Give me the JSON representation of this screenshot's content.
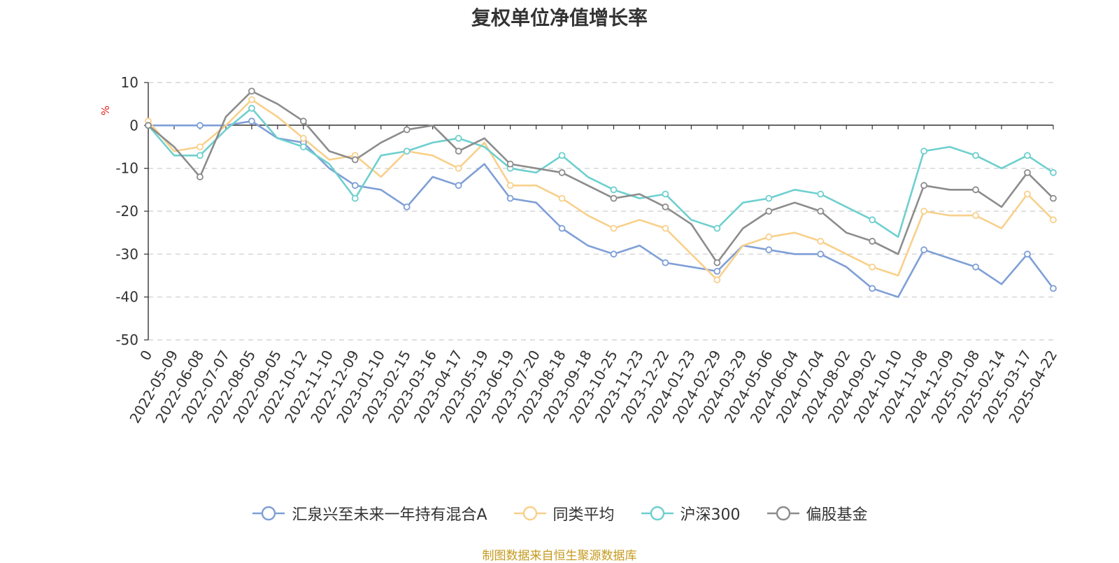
{
  "chart_data": {
    "type": "line",
    "title": "复权单位净值增长率",
    "ylabel": "%",
    "ylim": [
      -50,
      10
    ],
    "yticks": [
      10,
      0,
      -10,
      -20,
      -30,
      -40,
      -50
    ],
    "ytick_labels": [
      "10",
      "0",
      "-10",
      "-20",
      "-30",
      "-40",
      "-50"
    ],
    "grid": true,
    "legend_position": "bottom",
    "x_categories": [
      "0",
      "2022-05-09",
      "2022-06-08",
      "2022-07-07",
      "2022-08-05",
      "2022-09-05",
      "2022-10-12",
      "2022-11-10",
      "2022-12-09",
      "2023-01-10",
      "2023-02-15",
      "2023-03-16",
      "2023-04-17",
      "2023-05-19",
      "2023-06-19",
      "2023-07-20",
      "2023-08-18",
      "2023-09-18",
      "2023-10-25",
      "2023-11-23",
      "2023-12-22",
      "2024-01-23",
      "2024-02-29",
      "2024-03-29",
      "2024-05-06",
      "2024-06-04",
      "2024-07-04",
      "2024-08-02",
      "2024-09-02",
      "2024-10-10",
      "2024-11-08",
      "2024-12-09",
      "2025-01-08",
      "2025-02-14",
      "2025-03-17",
      "2025-04-22"
    ],
    "series": [
      {
        "name": "汇泉兴至未来一年持有混合A",
        "color": "#7f9fd6",
        "values": [
          0,
          0,
          0,
          0,
          1,
          -3,
          -4,
          -10,
          -14,
          -15,
          -19,
          -12,
          -14,
          -9,
          -17,
          -18,
          -24,
          -28,
          -30,
          -28,
          -32,
          -33,
          -34,
          -28,
          -29,
          -30,
          -30,
          -33,
          -38,
          -40,
          -29,
          -31,
          -33,
          -37,
          -30,
          -38
        ]
      },
      {
        "name": "同类平均",
        "color": "#f8d08b",
        "values": [
          1,
          -6,
          -5,
          0,
          6,
          2,
          -3,
          -8,
          -7,
          -12,
          -6,
          -7,
          -10,
          -4,
          -14,
          -14,
          -17,
          -21,
          -24,
          -22,
          -24,
          -30,
          -36,
          -28,
          -26,
          -25,
          -27,
          -30,
          -33,
          -35,
          -20,
          -21,
          -21,
          -24,
          -16,
          -22
        ]
      },
      {
        "name": "沪深300",
        "color": "#6fcfcf",
        "values": [
          0,
          -7,
          -7,
          -1,
          4,
          -3,
          -5,
          -9,
          -17,
          -7,
          -6,
          -4,
          -3,
          -5,
          -10,
          -11,
          -7,
          -12,
          -15,
          -17,
          -16,
          -22,
          -24,
          -18,
          -17,
          -15,
          -16,
          -19,
          -22,
          -26,
          -6,
          -5,
          -7,
          -10,
          -7,
          -11
        ]
      },
      {
        "name": "偏股基金",
        "color": "#8c8c8c",
        "values": [
          0,
          -5,
          -12,
          2,
          8,
          5,
          1,
          -6,
          -8,
          -4,
          -1,
          0,
          -6,
          -3,
          -9,
          -10,
          -11,
          -14,
          -17,
          -16,
          -19,
          -23,
          -32,
          -24,
          -20,
          -18,
          -20,
          -25,
          -27,
          -30,
          -14,
          -15,
          -15,
          -19,
          -11,
          -17
        ]
      }
    ]
  },
  "source_text": "制图数据来自恒生聚源数据库"
}
